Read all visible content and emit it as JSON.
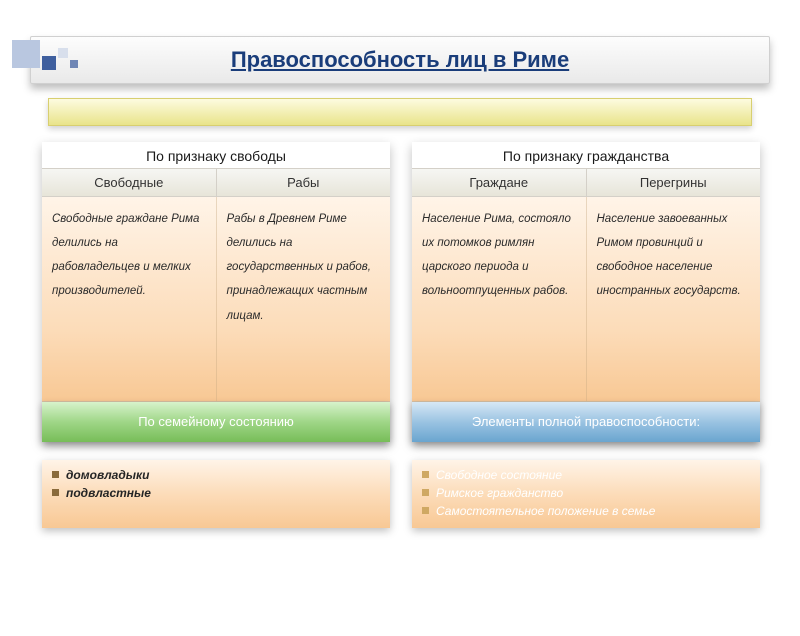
{
  "title": "Правоспособность лиц в Риме",
  "subtitle": "",
  "panels": [
    {
      "label": "По признаку свободы",
      "col_a_header": "Свободные",
      "col_b_header": "Рабы",
      "col_a_body": "Свободные граждане Рима делились на рабовладельцев и мелких производителей.",
      "col_b_body": "Рабы в Древнем Риме делились на государственных и рабов, принадлежащих частным лицам.",
      "footer": "По семейному состоянию",
      "footer_style": "green"
    },
    {
      "label": "По признаку гражданства",
      "col_a_header": "Граждане",
      "col_b_header": "Перегрины",
      "col_a_body": "Население Рима, состояло их потомков римлян царского периода и вольноотпущенных рабов.",
      "col_b_body": "Население завоеванных Римом провинций и свободное население иностранных государств.",
      "footer": "Элементы полной правоспособности:",
      "footer_style": "blue"
    }
  ],
  "bottom": {
    "left_items": [
      "домовладыки",
      "подвластные"
    ],
    "right_items": [
      "Свободное состояние",
      "Римское гражданство",
      "Самостоятельное положение в семье"
    ]
  },
  "colors": {
    "title_text": "#1a3d7a",
    "panel_grad_top": "#fff4e8",
    "panel_grad_bot": "#f8c894",
    "green_grad": "#77bd58",
    "blue_grad": "#6aa5cf"
  }
}
